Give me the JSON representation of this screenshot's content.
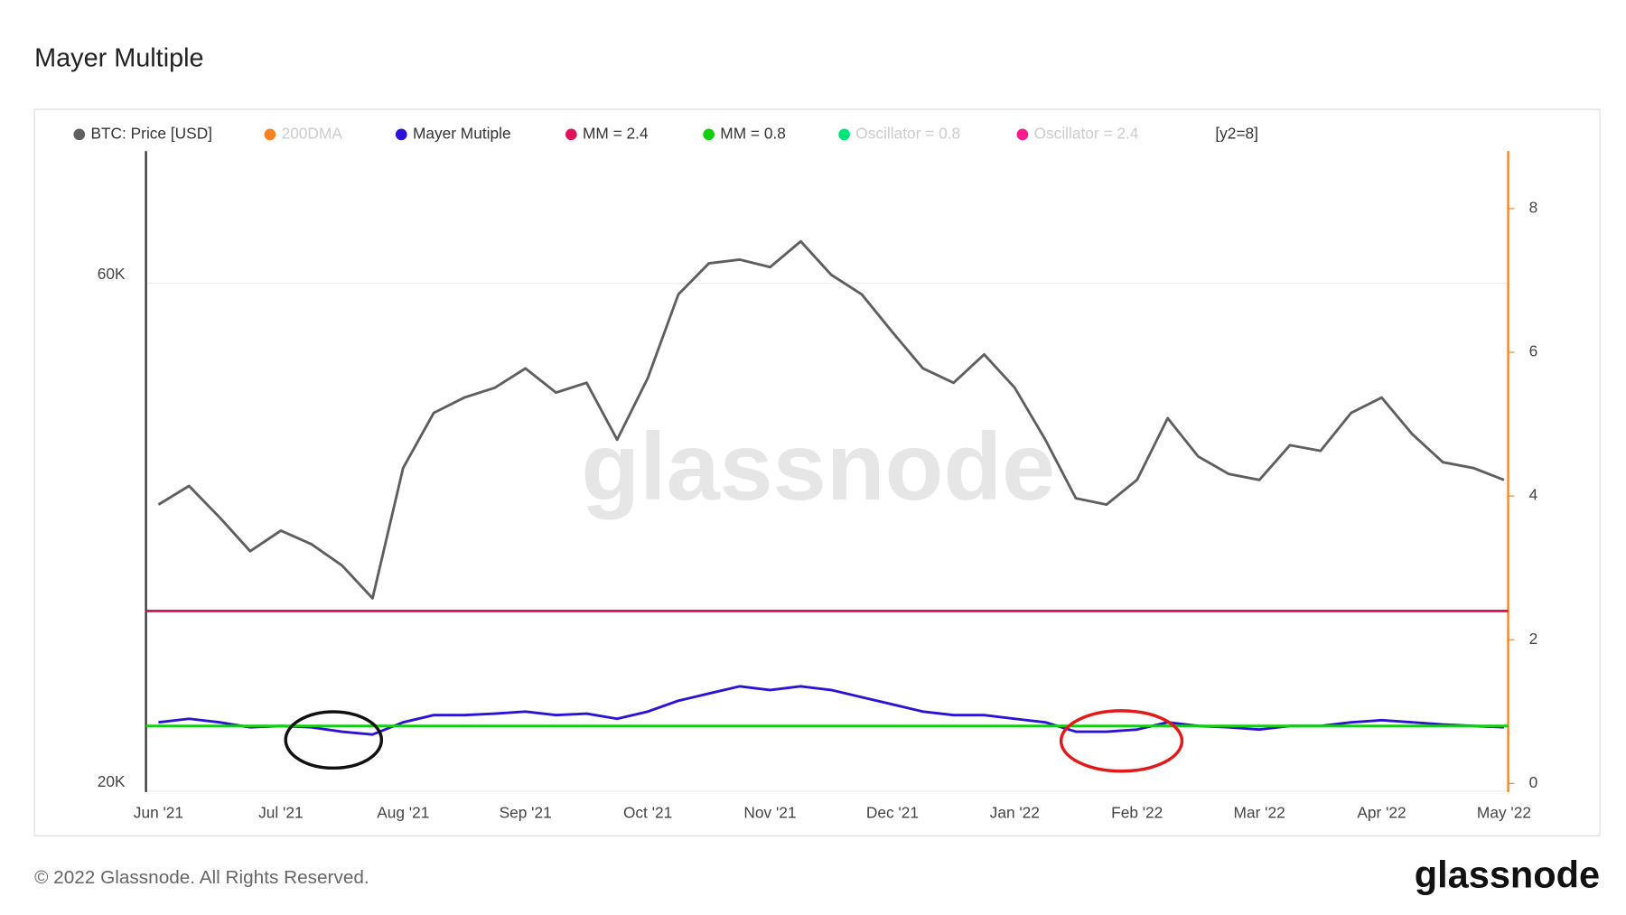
{
  "chart_data": {
    "type": "line",
    "title": "Mayer Multiple",
    "watermark": "glassnode",
    "footer": "© 2022 Glassnode. All Rights Reserved.",
    "brand": "glassnode",
    "legend_note": "[y2=8]",
    "categories": [
      "Jun '21",
      null,
      null,
      null,
      "Jul '21",
      null,
      null,
      null,
      "Aug '21",
      null,
      null,
      null,
      "Sep '21",
      null,
      null,
      null,
      "Oct '21",
      null,
      null,
      null,
      "Nov '21",
      null,
      null,
      null,
      "Dec '21",
      null,
      null,
      null,
      "Jan '22",
      null,
      null,
      null,
      "Feb '22",
      null,
      null,
      null,
      "Mar '22",
      null,
      null,
      null,
      "Apr '22",
      null,
      null,
      null,
      "May '22"
    ],
    "log_scale": true,
    "grid": true,
    "ylim": [
      19600,
      78400
    ],
    "yticks": [
      {
        "value": 20000,
        "label": "20K"
      },
      {
        "value": 60000,
        "label": "60K"
      }
    ],
    "y2lim": [
      -0.12,
      8.8
    ],
    "y2ticks": [
      0,
      2,
      4,
      6,
      8
    ],
    "y2_axis_color": "#f7811f",
    "series": [
      {
        "name": "BTC: Price [USD]",
        "color": "#5f5f5f",
        "values": [
          36500,
          38000,
          35500,
          33000,
          34500,
          33500,
          32000,
          29800,
          39500,
          44500,
          46000,
          47000,
          49000,
          46500,
          47500,
          42000,
          48000,
          57500,
          61500,
          62000,
          61000,
          64500,
          60000,
          57500,
          53000,
          49000,
          47500,
          50500,
          47000,
          42000,
          37000,
          36500,
          38500,
          44000,
          40500,
          39000,
          38500,
          41500,
          41000,
          44500,
          46000,
          42500,
          40000,
          39500,
          38500
        ]
      },
      {
        "name": "200DMA",
        "color": "#f7811f",
        "visible": false
      },
      {
        "name": "Mayer Mutiple",
        "color": "#2b12d8",
        "axis": "y2",
        "values": [
          0.85,
          0.9,
          0.85,
          0.78,
          0.8,
          0.78,
          0.72,
          0.68,
          0.85,
          0.95,
          0.95,
          0.97,
          1.0,
          0.95,
          0.97,
          0.9,
          1.0,
          1.15,
          1.25,
          1.35,
          1.3,
          1.35,
          1.3,
          1.2,
          1.1,
          1.0,
          0.95,
          0.95,
          0.9,
          0.85,
          0.72,
          0.72,
          0.75,
          0.85,
          0.8,
          0.78,
          0.75,
          0.8,
          0.8,
          0.85,
          0.88,
          0.85,
          0.82,
          0.8,
          0.78
        ]
      },
      {
        "name": "MM = 2.4",
        "color": "#e0125c",
        "axis": "y2",
        "level": 2.4
      },
      {
        "name": "MM = 0.8",
        "color": "#10d010",
        "axis": "y2",
        "level": 0.8
      },
      {
        "name": "Oscillator = 0.8",
        "color": "#00e676",
        "axis": "y2",
        "visible": false
      },
      {
        "name": "Oscillator = 2.4",
        "color": "#ff1a8c",
        "axis": "y2",
        "visible": false
      }
    ]
  }
}
